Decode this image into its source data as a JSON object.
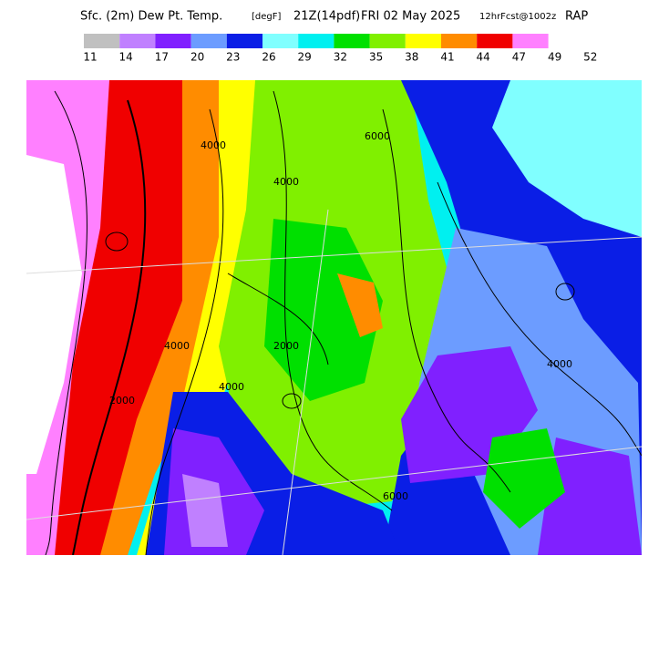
{
  "header": {
    "field": "Sfc. (2m) Dew Pt. Temp.",
    "units": "[degF]",
    "valid": "21Z(14pdf)",
    "date": "FRI 02 May 2025",
    "forecast": "12hrFcst@1002z",
    "model": "RAP"
  },
  "colorbar": {
    "colors": [
      "#c0c0c0",
      "#c080ff",
      "#8020ff",
      "#6c9cff",
      "#0a1ee6",
      "#80ffff",
      "#00f0f0",
      "#00e000",
      "#80f000",
      "#ffff00",
      "#ff8c00",
      "#f00000",
      "#ff80ff"
    ],
    "ticks": [
      11,
      14,
      17,
      20,
      23,
      26,
      29,
      32,
      35,
      38,
      41,
      44,
      47,
      49,
      52
    ]
  },
  "contour_labels": [
    "4000",
    "2000",
    "4000",
    "2000",
    "6000",
    "4000",
    "6000",
    "4000",
    "4000"
  ]
}
